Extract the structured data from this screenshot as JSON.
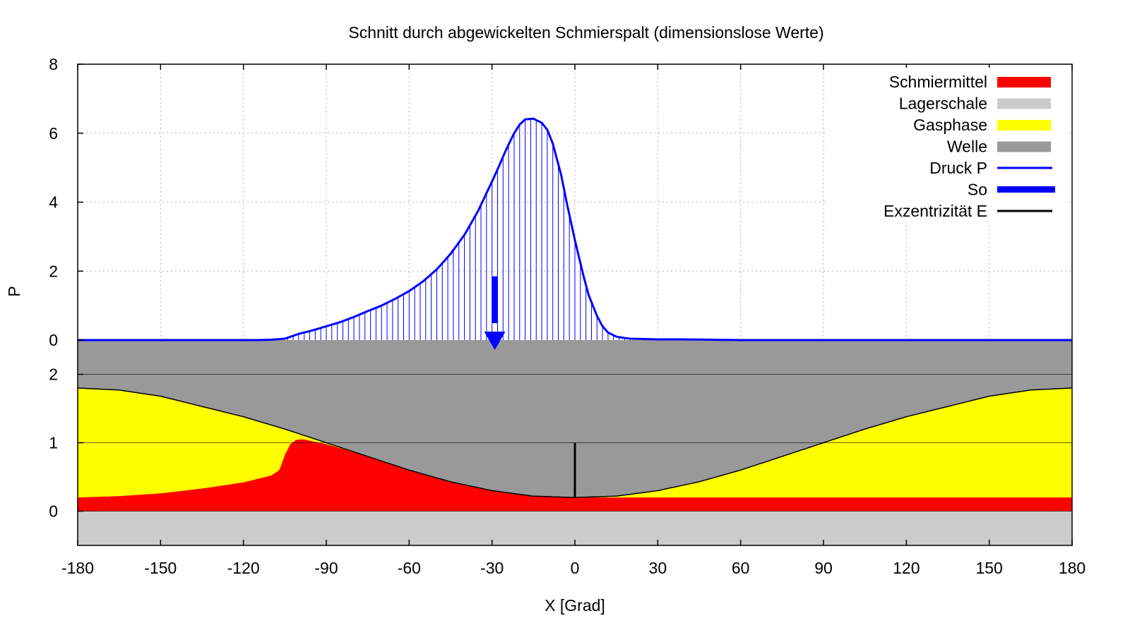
{
  "colors": {
    "schmiermittel": "#ff0000",
    "lagerschale": "#cccccc",
    "gasphase": "#ffff00",
    "welle": "#999999",
    "druck": "#0000ff",
    "so": "#0000ff",
    "exzentrizitaet": "#000000"
  },
  "chart_data": {
    "type": "area",
    "title": "Schnitt durch abgewickelten Schmierspalt (dimensionslose Werte)",
    "xlabel": "X [Grad]",
    "ylabel": "P",
    "xlim": [
      -180,
      180
    ],
    "x_ticks": [
      "-180",
      "-150",
      "-120",
      "-90",
      "-60",
      "-30",
      "0",
      "30",
      "60",
      "90",
      "120",
      "150",
      "180"
    ],
    "pressure_panel": {
      "ylim": [
        0,
        8
      ],
      "y_ticks": [
        "0",
        "2",
        "4",
        "6",
        "8"
      ],
      "grid": true
    },
    "gap_panel": {
      "ylim": [
        -0.5,
        2.5
      ],
      "y_ticks": [
        "0",
        "1",
        "2"
      ],
      "lagerschale_bottom": -0.5
    },
    "legend": {
      "position": "top-right",
      "entries": [
        {
          "key": "schmiermittel",
          "label": "Schmiermittel",
          "style": "box"
        },
        {
          "key": "lagerschale",
          "label": "Lagerschale",
          "style": "box"
        },
        {
          "key": "gasphase",
          "label": "Gasphase",
          "style": "box"
        },
        {
          "key": "welle",
          "label": "Welle",
          "style": "box"
        },
        {
          "key": "druck",
          "label": "Druck P",
          "style": "line"
        },
        {
          "key": "so",
          "label": "So",
          "style": "thick"
        },
        {
          "key": "exzentrizitaet",
          "label": "Exzentrizität E",
          "style": "line"
        }
      ]
    },
    "pressure": {
      "x": [
        -180,
        -150,
        -120,
        -115,
        -110,
        -105,
        -100,
        -95,
        -90,
        -85,
        -80,
        -75,
        -70,
        -65,
        -60,
        -55,
        -50,
        -45,
        -40,
        -35,
        -30,
        -28,
        -25,
        -22,
        -20,
        -18,
        -15,
        -12,
        -10,
        -8,
        -5,
        -3,
        0,
        3,
        5,
        8,
        10,
        12,
        15,
        18,
        20,
        25,
        30,
        40,
        50,
        60,
        90,
        120,
        150,
        180
      ],
      "values": [
        0,
        0,
        0,
        0,
        0.01,
        0.04,
        0.18,
        0.28,
        0.4,
        0.52,
        0.67,
        0.84,
        1.0,
        1.2,
        1.42,
        1.7,
        2.05,
        2.5,
        3.05,
        3.75,
        4.6,
        4.95,
        5.5,
        6.0,
        6.25,
        6.4,
        6.42,
        6.3,
        6.1,
        5.7,
        4.8,
        4.0,
        2.9,
        1.9,
        1.3,
        0.7,
        0.4,
        0.22,
        0.1,
        0.06,
        0.04,
        0.03,
        0.02,
        0.02,
        0.01,
        0,
        0,
        0,
        0,
        0
      ]
    },
    "so": {
      "x": -29,
      "from": 1.85,
      "to": 0
    },
    "gap_welle": {
      "x": [
        -180,
        -165,
        -150,
        -135,
        -120,
        -105,
        -90,
        -75,
        -60,
        -45,
        -30,
        -15,
        0,
        15,
        30,
        45,
        60,
        75,
        90,
        105,
        120,
        135,
        150,
        165,
        180
      ],
      "values": [
        1.8,
        1.77,
        1.68,
        1.53,
        1.38,
        1.2,
        1.0,
        0.8,
        0.6,
        0.43,
        0.3,
        0.22,
        0.2,
        0.22,
        0.3,
        0.43,
        0.6,
        0.8,
        1.0,
        1.2,
        1.38,
        1.53,
        1.68,
        1.77,
        1.8
      ]
    },
    "gap_schmiermittel": {
      "x": [
        -180,
        -165,
        -150,
        -135,
        -120,
        -110,
        -107,
        -105,
        -103,
        -101,
        -99,
        -97,
        -95,
        -90,
        -75,
        -60,
        -45,
        -30,
        -15,
        0,
        15,
        30,
        60,
        90,
        120,
        150,
        180
      ],
      "values": [
        0.2,
        0.22,
        0.26,
        0.33,
        0.42,
        0.52,
        0.6,
        0.82,
        0.98,
        1.04,
        1.05,
        1.04,
        1.02,
        0.98,
        0.8,
        0.6,
        0.43,
        0.3,
        0.22,
        0.2,
        0.2,
        0.2,
        0.2,
        0.2,
        0.2,
        0.2,
        0.2
      ]
    },
    "exzentrizitaet": {
      "x": 0,
      "from": 0.2,
      "to": 1.0
    }
  }
}
